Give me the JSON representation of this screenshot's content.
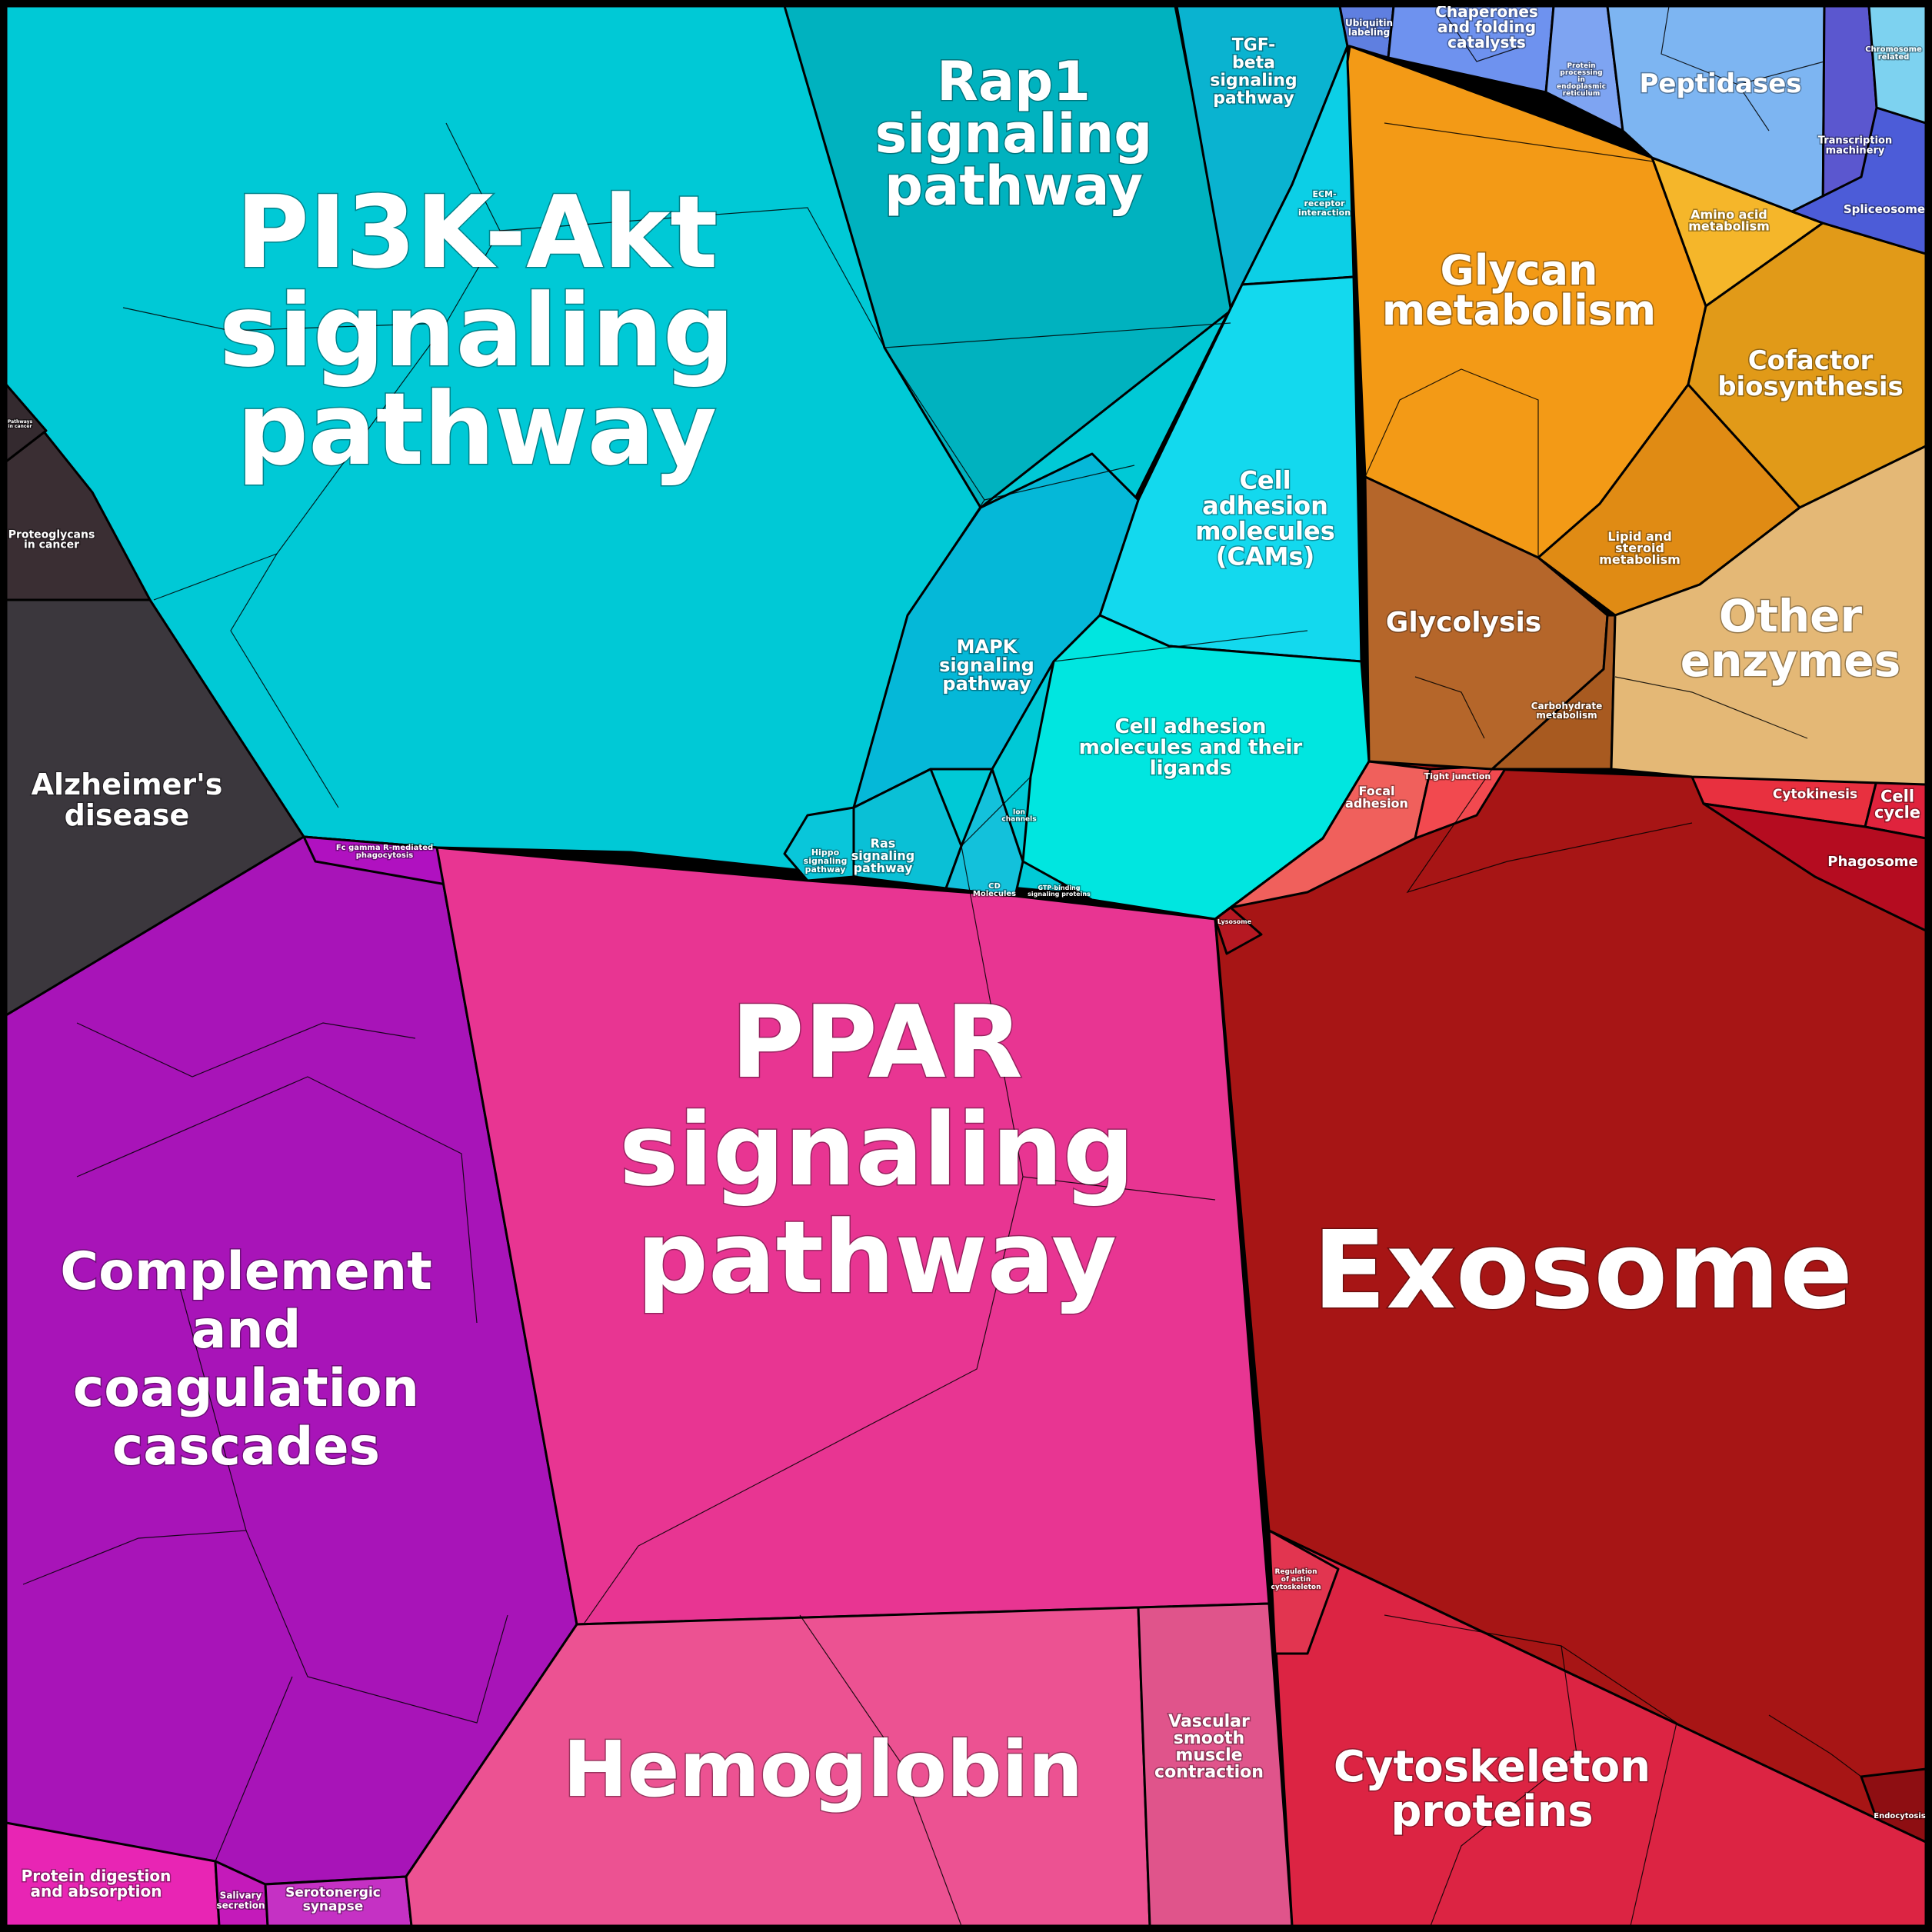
{
  "chart_data": {
    "type": "voronoi-treemap",
    "regions": [
      {
        "id": "pi3k",
        "label": "PI3K-Akt\nsignaling\npathway",
        "color": "#00c9d6"
      },
      {
        "id": "rap1",
        "label": "Rap1\nsignaling\npathway",
        "color": "#00b2bf"
      },
      {
        "id": "tgfb",
        "label": "TGF-\nbeta\nsignaling\npathway",
        "color": "#0ab3d0"
      },
      {
        "id": "ecm",
        "label": "ECM-\nreceptor\ninteraction",
        "color": "#0ccfe6"
      },
      {
        "id": "cams",
        "label": "Cell\nadhesion\nmolecules\n(CAMs)",
        "color": "#13d9ee"
      },
      {
        "id": "mapk",
        "label": "MAPK\nsignaling\npathway",
        "color": "#05b8d8"
      },
      {
        "id": "cam_ligands",
        "label": "Cell adhesion\nmolecules and their\nligands",
        "color": "#00e6e0"
      },
      {
        "id": "hippo",
        "label": "Hippo\nsignaling\npathway",
        "color": "#09c6da"
      },
      {
        "id": "ras",
        "label": "Ras\nsignaling\npathway",
        "color": "#0ac0d6"
      },
      {
        "id": "cd",
        "label": "CD\nMolecules",
        "color": "#13c1db"
      },
      {
        "id": "ion",
        "label": "Ion\nchannels",
        "color": "#10d2e2"
      },
      {
        "id": "gtp",
        "label": "GTP-binding\nsignaling proteins",
        "color": "#16cfe0"
      },
      {
        "id": "proteoglycans",
        "label": "Proteoglycans\nin cancer",
        "color": "#3a2e33"
      },
      {
        "id": "pathways_cancer",
        "label": "Pathways\nin cancer",
        "color": "#342a2f"
      },
      {
        "id": "alzheimers",
        "label": "Alzheimer's\ndisease",
        "color": "#3b373d"
      },
      {
        "id": "complement",
        "label": "Complement\nand\ncoagulation\ncascades",
        "color": "#a814b8"
      },
      {
        "id": "fcgamma",
        "label": "Fc gamma R-mediated\nphagocytosis",
        "color": "#b011c0"
      },
      {
        "id": "protein_digestion",
        "label": "Protein digestion\nand absorption",
        "color": "#e825b4"
      },
      {
        "id": "salivary",
        "label": "Salivary\nsecretion",
        "color": "#c41aba"
      },
      {
        "id": "serotonergic",
        "label": "Serotonergic\nsynapse",
        "color": "#c531c4"
      },
      {
        "id": "ppar",
        "label": "PPAR\nsignaling\npathway",
        "color": "#e83592"
      },
      {
        "id": "hemoglobin",
        "label": "Hemoglobin",
        "color": "#ec5292"
      },
      {
        "id": "vascular",
        "label": "Vascular\nsmooth\nmuscle\ncontraction",
        "color": "#e0548b"
      },
      {
        "id": "exosome",
        "label": "Exosome",
        "color": "#a71515"
      },
      {
        "id": "cytoskeleton",
        "label": "Cytoskeleton\nproteins",
        "color": "#dc2443"
      },
      {
        "id": "regulation_actin",
        "label": "Regulation\nof actin\ncytoskeleton",
        "color": "#e23550"
      },
      {
        "id": "focal",
        "label": "Focal\nadhesion",
        "color": "#f0605c"
      },
      {
        "id": "tight",
        "label": "Tight junction",
        "color": "#f2494f"
      },
      {
        "id": "lysosome",
        "label": "Lysosome",
        "color": "#b61822"
      },
      {
        "id": "cytokinesis",
        "label": "Cytokinesis",
        "color": "#e8303f"
      },
      {
        "id": "cellcycle",
        "label": "Cell\ncycle",
        "color": "#e0233d"
      },
      {
        "id": "phagosome",
        "label": "Phagosome",
        "color": "#b50c20"
      },
      {
        "id": "endocytosis",
        "label": "Endocytosis",
        "color": "#8e0e12"
      },
      {
        "id": "glycan",
        "label": "Glycan\nmetabolism",
        "color": "#f39a16"
      },
      {
        "id": "amino",
        "label": "Amino acid\nmetabolism",
        "color": "#f5b62a"
      },
      {
        "id": "cofactor",
        "label": "Cofactor\nbiosynthesis",
        "color": "#e19a18"
      },
      {
        "id": "lipid",
        "label": "Lipid and\nsteroid\nmetabolism",
        "color": "#e08b14"
      },
      {
        "id": "glycolysis",
        "label": "Glycolysis",
        "color": "#b5662a"
      },
      {
        "id": "carbohydrate",
        "label": "Carbohydrate\nmetabolism",
        "color": "#a85a20"
      },
      {
        "id": "other_enzymes",
        "label": "Other\nenzymes",
        "color": "#e4b876"
      },
      {
        "id": "ubiquitin",
        "label": "Ubiquitin\nlabeling",
        "color": "#5f7fe0"
      },
      {
        "id": "chaperones",
        "label": "Chaperones\nand folding\ncatalysts",
        "color": "#6e92ef"
      },
      {
        "id": "protein_processing",
        "label": "Protein\nprocessing\nin\nendoplasmic\nreticulum",
        "color": "#7ea4f2"
      },
      {
        "id": "peptidases",
        "label": "Peptidases",
        "color": "#7db5f2"
      },
      {
        "id": "transcription",
        "label": "Transcription\nmachinery",
        "color": "#5b57cf"
      },
      {
        "id": "spliceosome",
        "label": "Spliceosome",
        "color": "#4c5cd8"
      },
      {
        "id": "chromosome",
        "label": "Chromosome\nrelated",
        "color": "#7dd2f0"
      }
    ]
  }
}
